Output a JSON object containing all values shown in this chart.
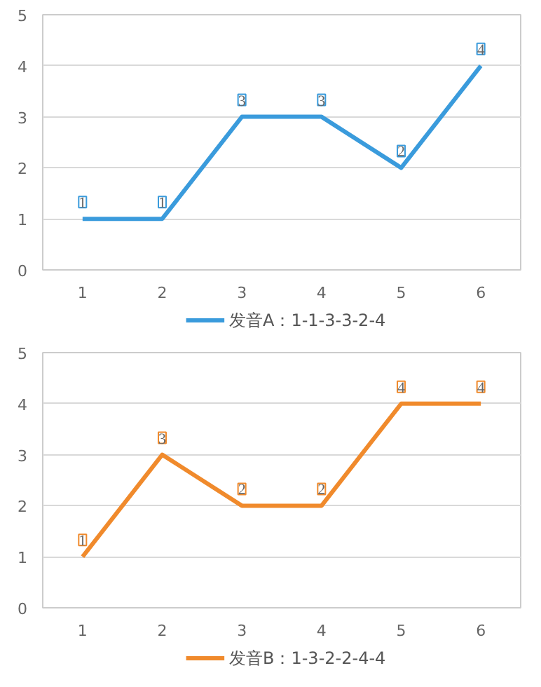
{
  "chart_data": [
    {
      "type": "line",
      "categories": [
        "1",
        "2",
        "3",
        "4",
        "5",
        "6"
      ],
      "series": [
        {
          "name": "发音A：1-1-3-3-2-4",
          "color": "#3a9bdc",
          "values": [
            1,
            1,
            3,
            3,
            2,
            4
          ]
        }
      ],
      "ylim": [
        0,
        5
      ],
      "yticks": [
        0,
        1,
        2,
        3,
        4,
        5
      ],
      "grid": "y",
      "legend": "bottom",
      "data_labels": true
    },
    {
      "type": "line",
      "categories": [
        "1",
        "2",
        "3",
        "4",
        "5",
        "6"
      ],
      "series": [
        {
          "name": "发音B：1-3-2-2-4-4",
          "color": "#f08a2c",
          "values": [
            1,
            3,
            2,
            2,
            4,
            4
          ]
        }
      ],
      "ylim": [
        0,
        5
      ],
      "yticks": [
        0,
        1,
        2,
        3,
        4,
        5
      ],
      "grid": "y",
      "legend": "bottom",
      "data_labels": true
    }
  ]
}
